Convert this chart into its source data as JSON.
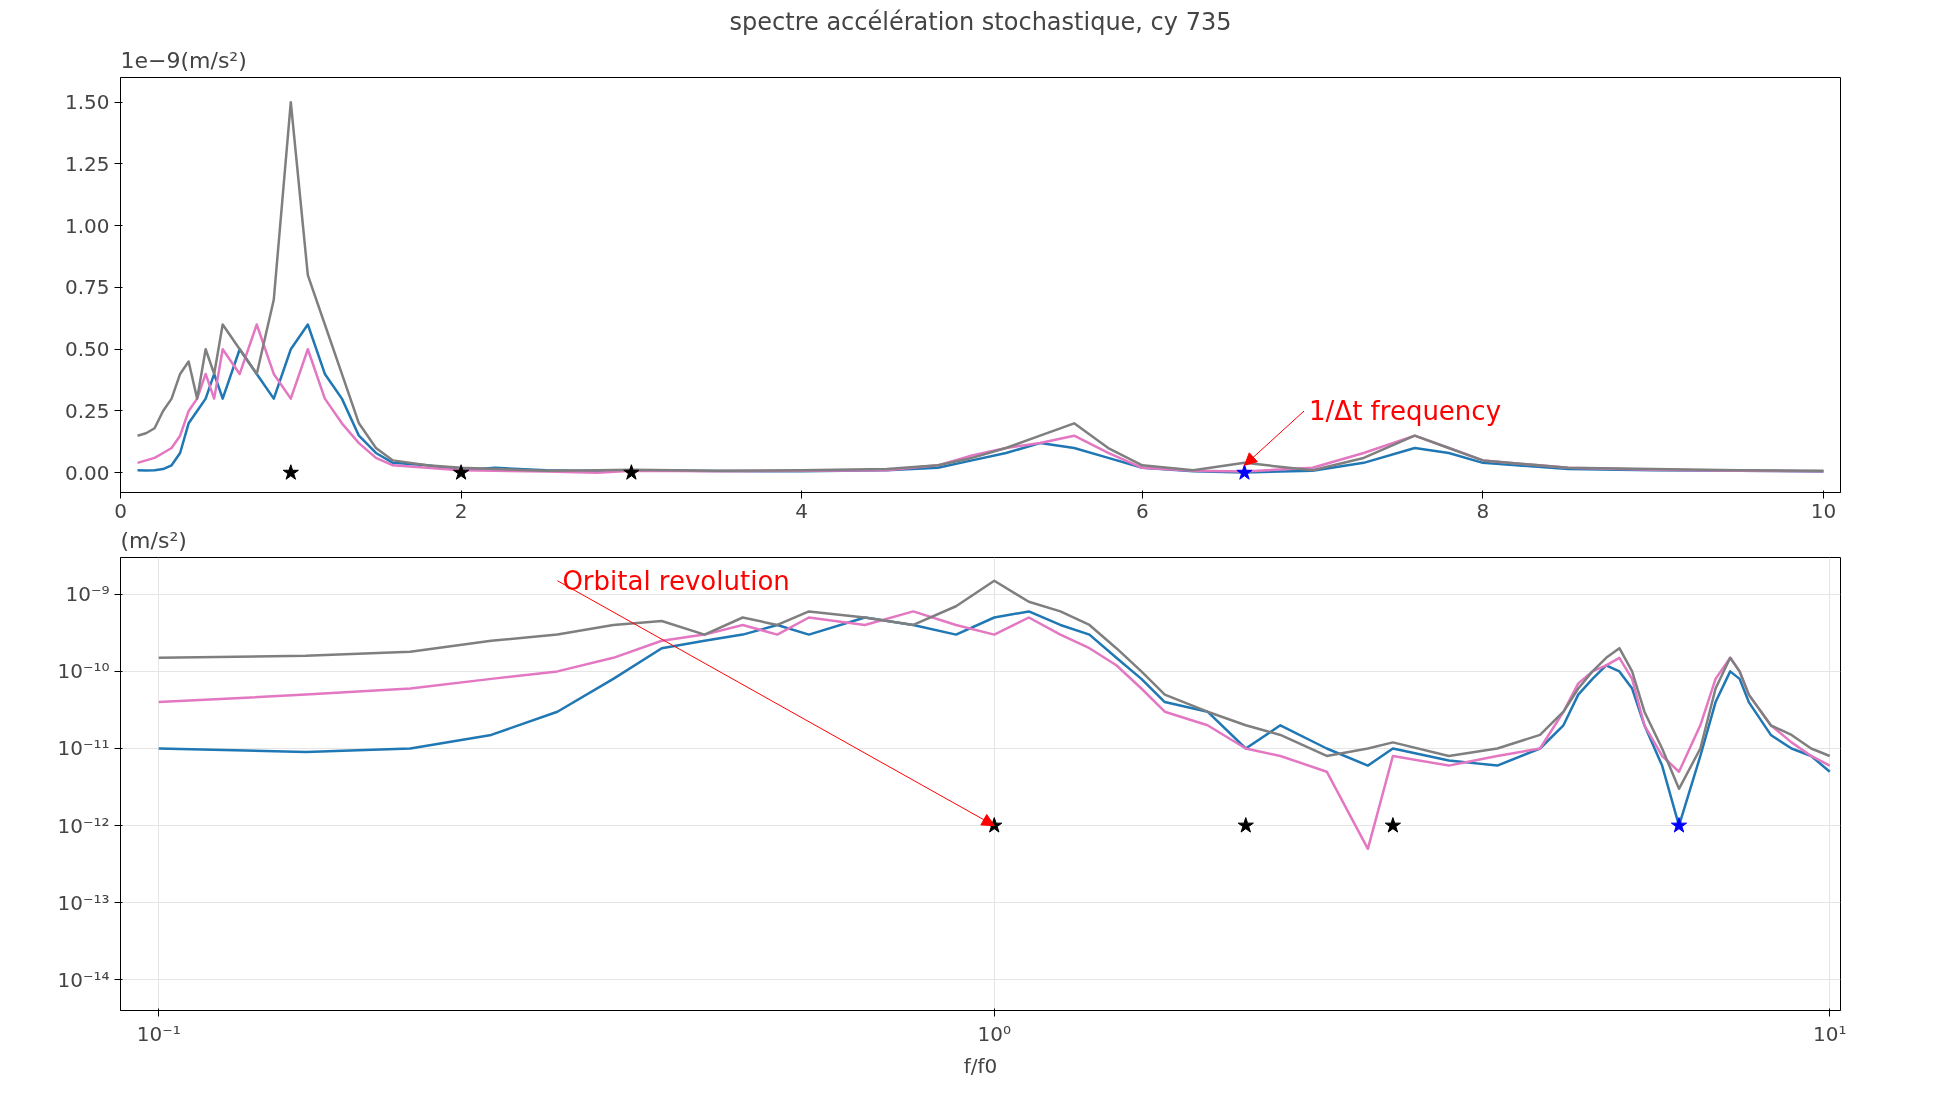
{
  "chart_data": [
    {
      "type": "line",
      "title": "spectre accélération stochastique, cy 735",
      "ylabel": "1e−9(m/s²)",
      "grid": false,
      "x": [
        0.1,
        0.15,
        0.2,
        0.25,
        0.3,
        0.35,
        0.4,
        0.45,
        0.5,
        0.55,
        0.6,
        0.7,
        0.8,
        0.9,
        1.0,
        1.1,
        1.2,
        1.3,
        1.4,
        1.5,
        1.6,
        1.8,
        2.0,
        2.2,
        2.5,
        2.8,
        3.0,
        3.5,
        4.0,
        4.5,
        4.8,
        5.0,
        5.2,
        5.4,
        5.6,
        5.8,
        6.0,
        6.3,
        6.6,
        7.0,
        7.3,
        7.6,
        7.8,
        8.0,
        8.5,
        9.0,
        9.5,
        10.0
      ],
      "xlim": [
        0,
        10.1
      ],
      "xticks": [
        0,
        2,
        4,
        6,
        8,
        10
      ],
      "ylim": [
        -0.08,
        1.6
      ],
      "yticks": [
        {
          "value": 0,
          "label": "0.00"
        },
        {
          "value": 0.25,
          "label": "0.25"
        },
        {
          "value": 0.5,
          "label": "0.50"
        },
        {
          "value": 0.75,
          "label": "0.75"
        },
        {
          "value": 1,
          "label": "1.00"
        },
        {
          "value": 1.25,
          "label": "1.25"
        },
        {
          "value": 1.5,
          "label": "1.50"
        }
      ],
      "series": [
        {
          "color": "#1f77b4",
          "values": [
            0.01,
            0.009,
            0.01,
            0.015,
            0.03,
            0.08,
            0.2,
            0.25,
            0.3,
            0.4,
            0.3,
            0.5,
            0.4,
            0.3,
            0.5,
            0.6,
            0.4,
            0.3,
            0.15,
            0.08,
            0.04,
            0.03,
            0.01,
            0.02,
            0.01,
            0.006,
            0.01,
            0.007,
            0.006,
            0.01,
            0.02,
            0.05,
            0.08,
            0.12,
            0.1,
            0.06,
            0.02,
            0.006,
            0.001,
            0.008,
            0.04,
            0.1,
            0.08,
            0.04,
            0.015,
            0.01,
            0.008,
            0.005
          ]
        },
        {
          "color": "#e377c2",
          "values": [
            0.04,
            0.05,
            0.06,
            0.08,
            0.1,
            0.15,
            0.25,
            0.3,
            0.4,
            0.3,
            0.5,
            0.4,
            0.6,
            0.4,
            0.3,
            0.5,
            0.3,
            0.2,
            0.12,
            0.06,
            0.03,
            0.02,
            0.01,
            0.008,
            0.005,
            0.0,
            0.008,
            0.006,
            0.008,
            0.01,
            0.03,
            0.07,
            0.1,
            0.12,
            0.15,
            0.08,
            0.02,
            0.008,
            0.005,
            0.02,
            0.08,
            0.15,
            0.1,
            0.05,
            0.02,
            0.012,
            0.008,
            0.006
          ]
        },
        {
          "color": "#7f7f7f",
          "values": [
            0.15,
            0.16,
            0.18,
            0.25,
            0.3,
            0.4,
            0.45,
            0.3,
            0.5,
            0.4,
            0.6,
            0.5,
            0.4,
            0.7,
            1.5,
            0.8,
            0.6,
            0.4,
            0.2,
            0.1,
            0.05,
            0.03,
            0.02,
            0.015,
            0.008,
            0.01,
            0.012,
            0.008,
            0.01,
            0.015,
            0.03,
            0.06,
            0.1,
            0.15,
            0.2,
            0.1,
            0.03,
            0.01,
            0.04,
            0.01,
            0.06,
            0.15,
            0.1,
            0.05,
            0.02,
            0.015,
            0.01,
            0.008
          ]
        },
        {
          "type": "scatter",
          "marker": "star",
          "color": "#000000",
          "x": [
            1,
            2,
            3
          ],
          "values": [
            0,
            0,
            0
          ]
        },
        {
          "type": "scatter",
          "marker": "star",
          "color": "#0000ff",
          "x": [
            6.6
          ],
          "values": [
            0
          ]
        }
      ],
      "annotations": [
        {
          "text": "1/Δt frequency",
          "x": 6.6,
          "y": 0.03
        }
      ]
    },
    {
      "type": "line",
      "ylabel": "(m/s²)",
      "xlabel": "f/f0",
      "grid": true,
      "log": "xy",
      "x": [
        0.1,
        0.15,
        0.2,
        0.25,
        0.3,
        0.35,
        0.4,
        0.45,
        0.5,
        0.55,
        0.6,
        0.7,
        0.8,
        0.9,
        1.0,
        1.1,
        1.2,
        1.3,
        1.4,
        1.5,
        1.6,
        1.8,
        2.0,
        2.2,
        2.5,
        2.8,
        3.0,
        3.5,
        4.0,
        4.5,
        4.8,
        5.0,
        5.2,
        5.4,
        5.6,
        5.8,
        6.0,
        6.3,
        6.6,
        7.0,
        7.3,
        7.6,
        7.8,
        8.0,
        8.5,
        9.0,
        9.5,
        10.0
      ],
      "xlim": [
        0.09,
        10.3
      ],
      "xticks": [
        {
          "value": 0.1,
          "label": "10⁻¹"
        },
        {
          "value": 1,
          "label": "10⁰"
        },
        {
          "value": 10,
          "label": "10¹"
        }
      ],
      "ylim": [
        4e-15,
        3e-09
      ],
      "yticks": [
        {
          "value": 1e-14,
          "label": "10⁻¹⁴"
        },
        {
          "value": 1e-13,
          "label": "10⁻¹³"
        },
        {
          "value": 1e-12,
          "label": "10⁻¹²"
        },
        {
          "value": 1e-11,
          "label": "10⁻¹¹"
        },
        {
          "value": 1e-10,
          "label": "10⁻¹⁰"
        },
        {
          "value": 1e-09,
          "label": "10⁻⁹"
        }
      ],
      "series": [
        {
          "color": "#1f77b4",
          "values": [
            1e-11,
            9e-12,
            1e-11,
            1.5e-11,
            3e-11,
            8e-11,
            2e-10,
            2.5e-10,
            3e-10,
            4e-10,
            3e-10,
            5e-10,
            4e-10,
            3e-10,
            5e-10,
            6e-10,
            4e-10,
            3e-10,
            1.5e-10,
            8e-11,
            4e-11,
            3e-11,
            1e-11,
            2e-11,
            1e-11,
            6e-12,
            1e-11,
            7e-12,
            6e-12,
            1e-11,
            2e-11,
            5e-11,
            8e-11,
            1.2e-10,
            1e-10,
            6e-11,
            2e-11,
            6e-12,
            1e-12,
            8e-12,
            4e-11,
            1e-10,
            8e-11,
            4e-11,
            1.5e-11,
            1e-11,
            8e-12,
            5e-12
          ]
        },
        {
          "color": "#e377c2",
          "values": [
            4e-11,
            5e-11,
            6e-11,
            8e-11,
            1e-10,
            1.5e-10,
            2.5e-10,
            3e-10,
            4e-10,
            3e-10,
            5e-10,
            4e-10,
            6e-10,
            4e-10,
            3e-10,
            5e-10,
            3e-10,
            2e-10,
            1.2e-10,
            6e-11,
            3e-11,
            2e-11,
            1e-11,
            8e-12,
            5e-12,
            5e-13,
            8e-12,
            6e-12,
            8e-12,
            1e-11,
            3e-11,
            7e-11,
            1e-10,
            1.2e-10,
            1.5e-10,
            8e-11,
            2e-11,
            8e-12,
            5e-12,
            2e-11,
            8e-11,
            1.5e-10,
            1e-10,
            5e-11,
            2e-11,
            1.2e-11,
            8e-12,
            6e-12
          ]
        },
        {
          "color": "#7f7f7f",
          "values": [
            1.5e-10,
            1.6e-10,
            1.8e-10,
            2.5e-10,
            3e-10,
            4e-10,
            4.5e-10,
            3e-10,
            5e-10,
            4e-10,
            6e-10,
            5e-10,
            4e-10,
            7e-10,
            1.5e-09,
            8e-10,
            6e-10,
            4e-10,
            2e-10,
            1e-10,
            5e-11,
            3e-11,
            2e-11,
            1.5e-11,
            8e-12,
            1e-11,
            1.2e-11,
            8e-12,
            1e-11,
            1.5e-11,
            3e-11,
            6e-11,
            1e-10,
            1.5e-10,
            2e-10,
            1e-10,
            3e-11,
            1e-11,
            3e-12,
            1e-11,
            6e-11,
            1.5e-10,
            1e-10,
            5e-11,
            2e-11,
            1.5e-11,
            1e-11,
            8e-12
          ]
        },
        {
          "type": "scatter",
          "marker": "star",
          "color": "#000000",
          "x": [
            1,
            2,
            3
          ],
          "values": [
            1e-12,
            1e-12,
            1e-12
          ]
        },
        {
          "type": "scatter",
          "marker": "star",
          "color": "#0000ff",
          "x": [
            6.6
          ],
          "values": [
            1e-12
          ]
        }
      ],
      "annotations": [
        {
          "text": "Orbital revolution",
          "x": 1,
          "y": 1e-12
        }
      ]
    }
  ]
}
